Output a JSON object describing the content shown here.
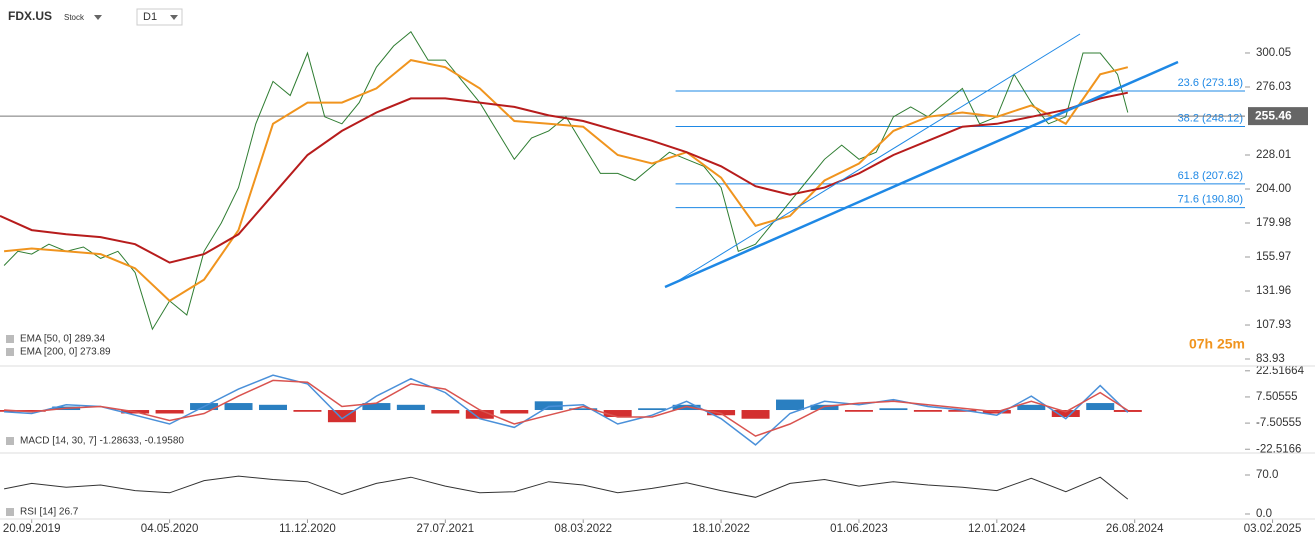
{
  "header": {
    "symbol": "FDX.US",
    "kind": "Stock",
    "timeframe": "D1"
  },
  "chart_data": [
    {
      "type": "line",
      "xlim": [
        -0.23,
        8.8
      ],
      "xticks": [
        {
          "value": 0,
          "label": "20.09.2019"
        },
        {
          "value": 1,
          "label": "04.05.2020"
        },
        {
          "value": 2,
          "label": "11.12.2020"
        },
        {
          "value": 3,
          "label": "27.07.2021"
        },
        {
          "value": 4,
          "label": "08.03.2022"
        },
        {
          "value": 5,
          "label": "18.10.2022"
        },
        {
          "value": 6,
          "label": "01.06.2023"
        },
        {
          "value": 7,
          "label": "12.01.2024"
        },
        {
          "value": 8,
          "label": "26.08.2024"
        },
        {
          "value": 9,
          "label": "03.02.2025"
        }
      ],
      "ylim": [
        79.7,
        330.4
      ],
      "yticks": [
        83.93,
        107.93,
        131.96,
        155.97,
        179.98,
        {
          "value": 204,
          "label": "204.00"
        },
        228.01,
        276.03,
        300.05
      ],
      "series": [
        {
          "color": "#2f7d32",
          "x": [
            -0.2,
            -0.1,
            0,
            0.125,
            0.25,
            0.375,
            0.5,
            0.625,
            0.75,
            0.875,
            1,
            1.125,
            1.25,
            1.375,
            1.5,
            1.625,
            1.75,
            1.875,
            2,
            2.125,
            2.25,
            2.375,
            2.5,
            2.625,
            2.75,
            2.875,
            3,
            3.125,
            3.25,
            3.375,
            3.5,
            3.625,
            3.75,
            3.875,
            4,
            4.125,
            4.25,
            4.375,
            4.5,
            4.625,
            4.75,
            4.875,
            5,
            5.125,
            5.25,
            5.375,
            5.5,
            5.625,
            5.75,
            5.875,
            6,
            6.125,
            6.25,
            6.375,
            6.5,
            6.625,
            6.75,
            6.875,
            7,
            7.125,
            7.25,
            7.375,
            7.5,
            7.625,
            7.75,
            7.875,
            7.95
          ],
          "values": [
            150,
            160,
            158,
            165,
            160,
            163,
            155,
            160,
            145,
            105,
            125,
            115,
            160,
            180,
            205,
            250,
            280,
            270,
            300,
            255,
            250,
            265,
            290,
            305,
            315,
            295,
            295,
            280,
            265,
            245,
            225,
            240,
            245,
            255,
            235,
            215,
            215,
            210,
            220,
            230,
            225,
            220,
            205,
            160,
            165,
            180,
            195,
            210,
            225,
            235,
            225,
            230,
            255,
            262,
            255,
            265,
            275,
            250,
            255,
            285,
            265,
            250,
            255,
            300,
            300,
            285,
            258
          ]
        },
        {
          "name": "EMA [50, 0] 289.34",
          "color": "#f0941e",
          "x": [
            -0.2,
            0,
            0.25,
            0.5,
            0.75,
            1,
            1.25,
            1.5,
            1.75,
            2,
            2.25,
            2.5,
            2.75,
            3,
            3.25,
            3.5,
            3.75,
            4,
            4.25,
            4.5,
            4.75,
            5,
            5.25,
            5.5,
            5.75,
            6,
            6.25,
            6.5,
            6.75,
            7,
            7.25,
            7.5,
            7.75,
            7.95
          ],
          "values": [
            160,
            162,
            160,
            158,
            148,
            125,
            140,
            175,
            250,
            265,
            265,
            275,
            295,
            290,
            275,
            252,
            250,
            248,
            228,
            222,
            230,
            212,
            178,
            185,
            210,
            222,
            245,
            255,
            258,
            255,
            263,
            250,
            285,
            290
          ]
        },
        {
          "name": "EMA [200, 0] 273.89",
          "color": "#b71c1c",
          "x": [
            -0.23,
            0,
            0.25,
            0.5,
            0.75,
            1,
            1.25,
            1.5,
            1.75,
            2,
            2.25,
            2.5,
            2.75,
            3,
            3.25,
            3.5,
            3.75,
            4,
            4.25,
            4.5,
            4.75,
            5,
            5.25,
            5.5,
            5.75,
            6,
            6.25,
            6.5,
            6.75,
            7,
            7.25,
            7.5,
            7.75,
            7.95
          ],
          "values": [
            185,
            175,
            172,
            170,
            165,
            152,
            158,
            172,
            200,
            228,
            245,
            258,
            268,
            268,
            265,
            262,
            256,
            252,
            245,
            238,
            230,
            220,
            206,
            200,
            205,
            215,
            228,
            238,
            248,
            250,
            255,
            260,
            268,
            272
          ]
        }
      ],
      "levels": [
        {
          "value": 273.18,
          "label": "23.6 (273.18)"
        },
        {
          "value": 248.12,
          "label": "38.2 (248.12)"
        },
        {
          "value": 207.62,
          "label": "61.8 (207.62)"
        },
        {
          "value": 190.8,
          "label": "71.6 (190.80)"
        }
      ],
      "last_price": 255.46,
      "countdown": "07h 25m"
    },
    {
      "type": "macd",
      "legend": "MACD [14, 30, 7] -1.28633, -0.19580",
      "xlim": [
        -0.23,
        8.8
      ],
      "ylim": [
        -24.1,
        24.7
      ],
      "yticks": [
        22.51664,
        7.50555,
        -7.50555,
        -22.5166
      ],
      "x": [
        -0.2,
        0,
        0.25,
        0.5,
        0.75,
        1,
        1.25,
        1.5,
        1.75,
        2,
        2.25,
        2.5,
        2.75,
        3,
        3.25,
        3.5,
        3.75,
        4,
        4.25,
        4.5,
        4.75,
        5,
        5.25,
        5.5,
        5.75,
        6,
        6.25,
        6.5,
        6.75,
        7,
        7.25,
        7.5,
        7.75,
        7.95
      ],
      "series": [
        {
          "color": "#4a90d9",
          "values": [
            -1,
            -2,
            3,
            2,
            -3,
            -8,
            2,
            12,
            20,
            15,
            -5,
            8,
            18,
            10,
            -5,
            -10,
            2,
            3,
            -8,
            -3,
            5,
            -5,
            -20,
            -2,
            5,
            3,
            6,
            2,
            0,
            -3,
            8,
            -5,
            14,
            -1.3
          ]
        },
        {
          "color": "#d9534f",
          "values": [
            0,
            -1,
            1,
            2,
            -1,
            -6,
            -2,
            8,
            17,
            16,
            2,
            4,
            15,
            12,
            0,
            -8,
            -3,
            2,
            -4,
            -4,
            2,
            -2,
            -15,
            -8,
            2,
            4,
            5,
            3,
            1,
            -1,
            5,
            -1,
            10,
            -0.2
          ]
        }
      ],
      "histogram": [
        -1,
        -1,
        2,
        0,
        -2,
        -2,
        4,
        4,
        3,
        -1,
        -7,
        4,
        3,
        -2,
        -5,
        -2,
        5,
        1,
        -4,
        1,
        3,
        -3,
        -5,
        6,
        3,
        -1,
        1,
        -1,
        -1,
        -2,
        3,
        -4,
        4,
        -1.1
      ],
      "histogram_colors": [
        "#2a7fc1",
        "#d32f2f"
      ]
    },
    {
      "type": "rsi",
      "legend": "RSI [14] 26.7",
      "xlim": [
        -0.23,
        8.8
      ],
      "ylim": [
        -10.8,
        105.9
      ],
      "yticks": [
        {
          "value": 70,
          "label": "70.0"
        },
        {
          "value": 0,
          "label": "0.0"
        }
      ],
      "x": [
        -0.2,
        0,
        0.25,
        0.5,
        0.75,
        1,
        1.25,
        1.5,
        1.75,
        2,
        2.25,
        2.5,
        2.75,
        3,
        3.25,
        3.5,
        3.75,
        4,
        4.25,
        4.5,
        4.75,
        5,
        5.25,
        5.5,
        5.75,
        6,
        6.25,
        6.5,
        6.75,
        7,
        7.25,
        7.5,
        7.75,
        7.95
      ],
      "series": [
        {
          "color": "#333333",
          "values": [
            45,
            55,
            48,
            52,
            42,
            38,
            60,
            68,
            62,
            58,
            35,
            55,
            66,
            50,
            38,
            40,
            58,
            52,
            38,
            46,
            56,
            42,
            30,
            55,
            62,
            50,
            58,
            52,
            48,
            42,
            64,
            40,
            66,
            26.7
          ]
        }
      ]
    }
  ]
}
